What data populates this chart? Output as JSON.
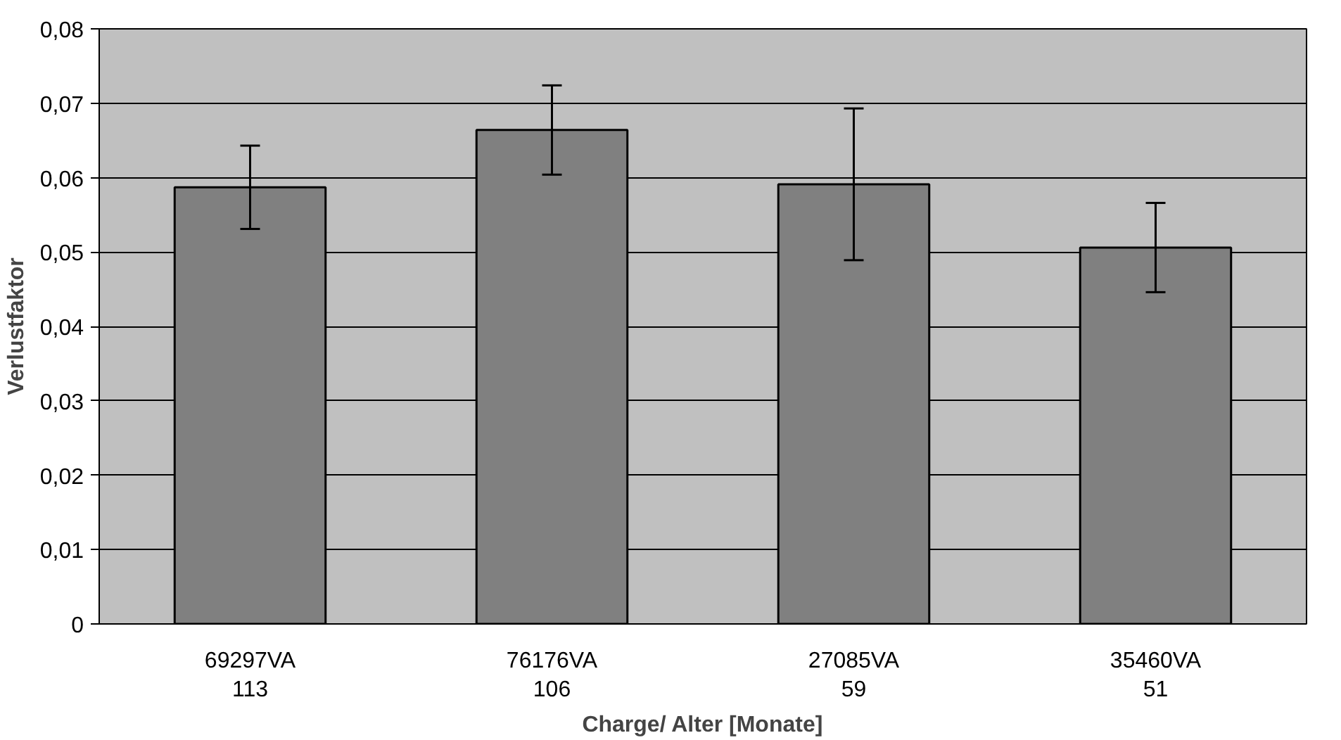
{
  "chart_data": {
    "type": "bar",
    "xlabel": "Charge/ Alter [Monate]",
    "ylabel": "Verlustfaktor",
    "categories": [
      "69297VA\n113",
      "76176VA\n106",
      "27085VA\n59",
      "35460VA\n51"
    ],
    "values": [
      0.0587,
      0.0664,
      0.0591,
      0.0506
    ],
    "errors": [
      0.0056,
      0.006,
      0.0102,
      0.006
    ],
    "color": "#808080",
    "ylim": [
      0,
      0.08
    ],
    "yticks": [
      {
        "value": 0,
        "label": "0"
      },
      {
        "value": 0.01,
        "label": "0,01"
      },
      {
        "value": 0.02,
        "label": "0,02"
      },
      {
        "value": 0.03,
        "label": "0,03"
      },
      {
        "value": 0.04,
        "label": "0,04"
      },
      {
        "value": 0.05,
        "label": "0,05"
      },
      {
        "value": 0.06,
        "label": "0,06"
      },
      {
        "value": 0.07,
        "label": "0,07"
      },
      {
        "value": 0.08,
        "label": "0,08"
      }
    ],
    "grid": "y"
  }
}
